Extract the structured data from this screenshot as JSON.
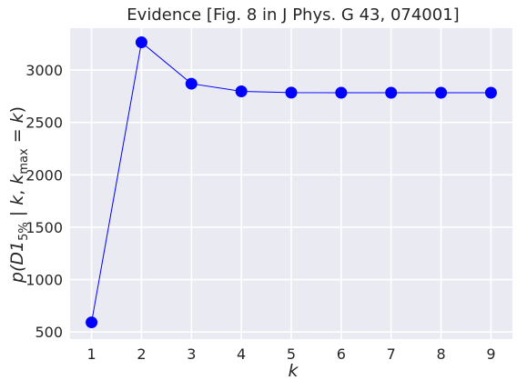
{
  "chart_data": {
    "type": "line",
    "title": "Evidence [Fig. 8 in J Phys. G 43, 074001]",
    "xlabel": "k",
    "ylabel_parts": {
      "p": "p(",
      "d1": "D1",
      "sub": "5%",
      "pipe": " | ",
      "k1": "k",
      "comma": ", ",
      "k2": "k",
      "max": "max",
      "eq": " = ",
      "k3": "k",
      "close": ")"
    },
    "x": [
      1,
      2,
      3,
      4,
      5,
      6,
      7,
      8,
      9
    ],
    "series": [
      {
        "values": [
          592,
          3265,
          2870,
          2797,
          2785,
          2784,
          2784,
          2784,
          2784
        ],
        "color": "#0000ff",
        "marker": "circle"
      }
    ],
    "xlim": [
      0.57,
      9.43
    ],
    "ylim": [
      432,
      3400
    ],
    "xticks": [
      1,
      2,
      3,
      4,
      5,
      6,
      7,
      8,
      9
    ],
    "yticks": [
      500,
      1000,
      1500,
      2000,
      2500,
      3000
    ],
    "grid": true,
    "background_color": "#eaeaf2",
    "grid_color": "#ffffff"
  }
}
